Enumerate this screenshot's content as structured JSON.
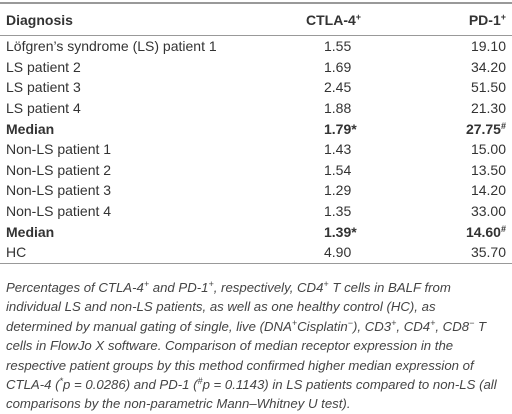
{
  "table": {
    "header": [
      "Diagnosis",
      {
        "text": "CTLA-4",
        "sup": "+"
      },
      {
        "text": "PD-1",
        "sup": "+"
      }
    ],
    "rows": [
      {
        "cells": [
          "Löfgren’s syndrome (LS) patient 1",
          "1.55",
          "19.10"
        ],
        "bold": false
      },
      {
        "cells": [
          "LS patient 2",
          "1.69",
          "34.20"
        ],
        "bold": false
      },
      {
        "cells": [
          "LS patient 3",
          "2.45",
          "51.50"
        ],
        "bold": false
      },
      {
        "cells": [
          "LS patient 4",
          "1.88",
          "21.30"
        ],
        "bold": false
      },
      {
        "cells": [
          "Median",
          "1.79*",
          {
            "text": "27.75",
            "sup": "#"
          }
        ],
        "bold": true
      },
      {
        "cells": [
          "Non-LS patient 1",
          "1.43",
          "15.00"
        ],
        "bold": false
      },
      {
        "cells": [
          "Non-LS patient 2",
          "1.54",
          "13.50"
        ],
        "bold": false
      },
      {
        "cells": [
          "Non-LS patient 3",
          "1.29",
          "14.20"
        ],
        "bold": false
      },
      {
        "cells": [
          "Non-LS patient 4",
          "1.35",
          "33.00"
        ],
        "bold": false
      },
      {
        "cells": [
          "Median",
          "1.39*",
          {
            "text": "14.60",
            "sup": "#"
          }
        ],
        "bold": true
      },
      {
        "cells": [
          "HC",
          "4.90",
          "35.70"
        ],
        "bold": false
      }
    ]
  },
  "caption": [
    {
      "text": "Percentages of CTLA-4"
    },
    {
      "sup": "+"
    },
    {
      "text": " and PD-1"
    },
    {
      "sup": "+"
    },
    {
      "text": ", respectively, CD4"
    },
    {
      "sup": "+"
    },
    {
      "text": " T cells in BALF from individual LS and non-LS patients, as well as one healthy control (HC), as determined by manual gating of single, live (DNA"
    },
    {
      "sup": "+"
    },
    {
      "text": "Cisplatin"
    },
    {
      "sup": "−"
    },
    {
      "text": "), CD3"
    },
    {
      "sup": "+"
    },
    {
      "text": ", CD4"
    },
    {
      "sup": "+"
    },
    {
      "text": ", CD8"
    },
    {
      "sup": "−"
    },
    {
      "text": " T cells in FlowJo X software. Comparison of median receptor expression in the respective patient groups by this method confirmed higher median expression of CTLA-4 ("
    },
    {
      "sup": "*"
    },
    {
      "text": "p = 0.0286) and PD-1 ("
    },
    {
      "sup": "#"
    },
    {
      "text": "p = 0.1143) in LS patients compared to non-LS (all comparisons by the non-parametric Mann–Whitney U test)."
    }
  ]
}
